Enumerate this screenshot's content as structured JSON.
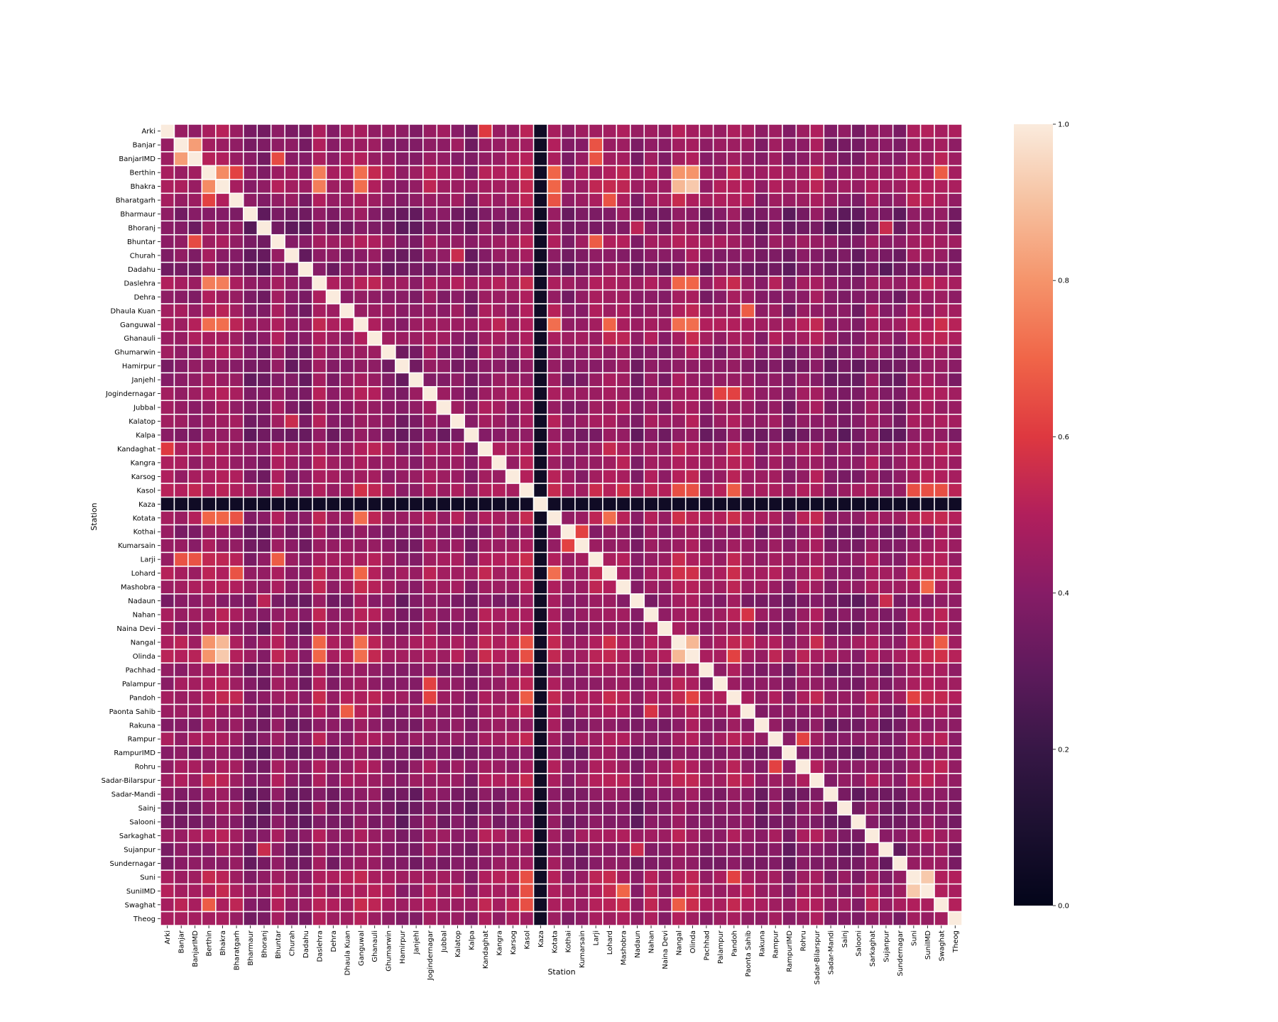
{
  "chart_data": {
    "type": "heatmap",
    "title": "",
    "xlabel": "Station",
    "ylabel": "Station",
    "categories": [
      "Arki",
      "Banjar",
      "BanjarIMD",
      "Berthin",
      "Bhakra",
      "Bharatgarh",
      "Bharmaur",
      "Bhoranj",
      "Bhuntar",
      "Churah",
      "Dadahu",
      "Daslehra",
      "Dehra",
      "Dhaula Kuan",
      "Ganguwal",
      "Ghanauli",
      "Ghumarwin",
      "Hamirpur",
      "Janjehl",
      "Jogindernagar",
      "Jubbal",
      "Kalatop",
      "Kalpa",
      "Kandaghat",
      "Kangra",
      "Karsog",
      "Kasol",
      "Kaza",
      "Kotata",
      "Kothai",
      "Kumarsain",
      "Larji",
      "Lohard",
      "Mashobra",
      "Nadaun",
      "Nahan",
      "Naina Devi",
      "Nangal",
      "Olinda",
      "Pachhad",
      "Palampur",
      "Pandoh",
      "Paonta Sahib",
      "Rakuna",
      "Rampur",
      "RampurIMD",
      "Rohru",
      "Sadar-Bilarspur",
      "Sadar-Mandi",
      "Sainj",
      "Salooni",
      "Sarkaghat",
      "Sujanpur",
      "Sundernagar",
      "Suni",
      "SuniIMD",
      "Swaghat",
      "Theog"
    ],
    "value_range": [
      0,
      1
    ],
    "colormap": "rocket",
    "colorbar_ticks": [
      "0.0",
      "0.2",
      "0.4",
      "0.6",
      "0.8",
      "1.0"
    ],
    "diagonal_value": 1.0,
    "default_value": 0.42,
    "row_defaults": {
      "Kaza": 0.05,
      "Dadahu": 0.3,
      "Bhoranj": 0.3,
      "Bharmaur": 0.33,
      "Kalpa": 0.32,
      "Salooni": 0.32,
      "Sainj": 0.33,
      "Sadar-Mandi": 0.33,
      "Hamirpur": 0.35,
      "Nadaun": 0.35,
      "RampurIMD": 0.33,
      "Sujanpur": 0.35,
      "Sundernagar": 0.35,
      "Janjehl": 0.36,
      "Rakuna": 0.36,
      "Churah": 0.36,
      "Kothai": 0.37,
      "Ghumarwin": 0.4,
      "Pachhad": 0.4,
      "Jubbal": 0.42,
      "Kalatop": 0.42,
      "Dehra": 0.4,
      "Naina Devi": 0.4,
      "Kumarsain": 0.4,
      "Palampur": 0.43,
      "Theog": 0.45,
      "Arki": 0.45,
      "Banjar": 0.44,
      "BanjarIMD": 0.44,
      "Bhuntar": 0.45,
      "Kangra": 0.46,
      "Karsog": 0.46,
      "Rampur": 0.45,
      "Rohru": 0.44,
      "Sarkaghat": 0.46,
      "Dhaula Kuan": 0.44,
      "Nahan": 0.46,
      "Paonta Sahib": 0.44,
      "Jogindernagar": 0.47,
      "Kandaghat": 0.49,
      "Mashobra": 0.5,
      "Larji": 0.48,
      "Bharatgarh": 0.48,
      "Ghanauli": 0.48,
      "Sadar-Bilarspur": 0.48,
      "Pandoh": 0.52,
      "Kotata": 0.52,
      "Lohard": 0.52,
      "Ganguwal": 0.52,
      "Daslehra": 0.52,
      "Swaghat": 0.53,
      "Suni": 0.5,
      "SuniIMD": 0.5,
      "Kasol": 0.55,
      "Berthin": 0.52,
      "Bhakra": 0.52,
      "Nangal": 0.54,
      "Olinda": 0.54
    },
    "pairs": [
      [
        "Banjar",
        "BanjarIMD",
        0.82
      ],
      [
        "Berthin",
        "Bhakra",
        0.78
      ],
      [
        "Berthin",
        "Daslehra",
        0.75
      ],
      [
        "Berthin",
        "Ganguwal",
        0.72
      ],
      [
        "Berthin",
        "Nangal",
        0.8
      ],
      [
        "Berthin",
        "Olinda",
        0.8
      ],
      [
        "Bhakra",
        "Nangal",
        0.88
      ],
      [
        "Bhakra",
        "Olinda",
        0.92
      ],
      [
        "Bhakra",
        "Daslehra",
        0.75
      ],
      [
        "Bhakra",
        "Ganguwal",
        0.72
      ],
      [
        "Nangal",
        "Olinda",
        0.88
      ],
      [
        "Suni",
        "SuniIMD",
        0.92
      ],
      [
        "Berthin",
        "Kotata",
        0.7
      ],
      [
        "Bhakra",
        "Kotata",
        0.7
      ],
      [
        "Ganguwal",
        "Kotata",
        0.72
      ],
      [
        "Lohard",
        "Kotata",
        0.72
      ],
      [
        "Ganguwal",
        "Lohard",
        0.7
      ],
      [
        "Kasol",
        "Pandoh",
        0.68
      ],
      [
        "Kasol",
        "Nangal",
        0.65
      ],
      [
        "Kasol",
        "Olinda",
        0.65
      ],
      [
        "Kasol",
        "Suni",
        0.65
      ],
      [
        "Kasol",
        "SuniIMD",
        0.65
      ],
      [
        "Mashobra",
        "SuniIMD",
        0.7
      ],
      [
        "Swaghat",
        "Kasol",
        0.65
      ],
      [
        "Swaghat",
        "Berthin",
        0.68
      ],
      [
        "Swaghat",
        "Nangal",
        0.68
      ],
      [
        "Jogindernagar",
        "Palampur",
        0.62
      ],
      [
        "Jogindernagar",
        "Pandoh",
        0.62
      ],
      [
        "Dhaula Kuan",
        "Paonta Sahib",
        0.68
      ],
      [
        "Banjar",
        "Larji",
        0.66
      ],
      [
        "BanjarIMD",
        "Larji",
        0.66
      ],
      [
        "Bhuntar",
        "Larji",
        0.68
      ],
      [
        "BanjarIMD",
        "Bhuntar",
        0.64
      ],
      [
        "Kothai",
        "Kumarsain",
        0.62
      ],
      [
        "Rampur",
        "Rohru",
        0.62
      ],
      [
        "Arki",
        "Kandaghat",
        0.6
      ],
      [
        "Bharatgarh",
        "Kotata",
        0.66
      ],
      [
        "Bharatgarh",
        "Berthin",
        0.62
      ],
      [
        "Bharatgarh",
        "Lohard",
        0.66
      ],
      [
        "Kalatop",
        "Churah",
        0.55
      ],
      [
        "Nahan",
        "Paonta Sahib",
        0.58
      ],
      [
        "Bhoranj",
        "Sujanpur",
        0.55
      ],
      [
        "Nadaun",
        "Sujanpur",
        0.55
      ],
      [
        "Nadaun",
        "Bhoranj",
        0.52
      ],
      [
        "Daslehra",
        "Nangal",
        0.7
      ],
      [
        "Daslehra",
        "Olinda",
        0.7
      ],
      [
        "Ganguwal",
        "Nangal",
        0.72
      ],
      [
        "Ganguwal",
        "Olinda",
        0.72
      ],
      [
        "Pandoh",
        "Suni",
        0.62
      ],
      [
        "Pandoh",
        "Olinda",
        0.62
      ]
    ]
  }
}
